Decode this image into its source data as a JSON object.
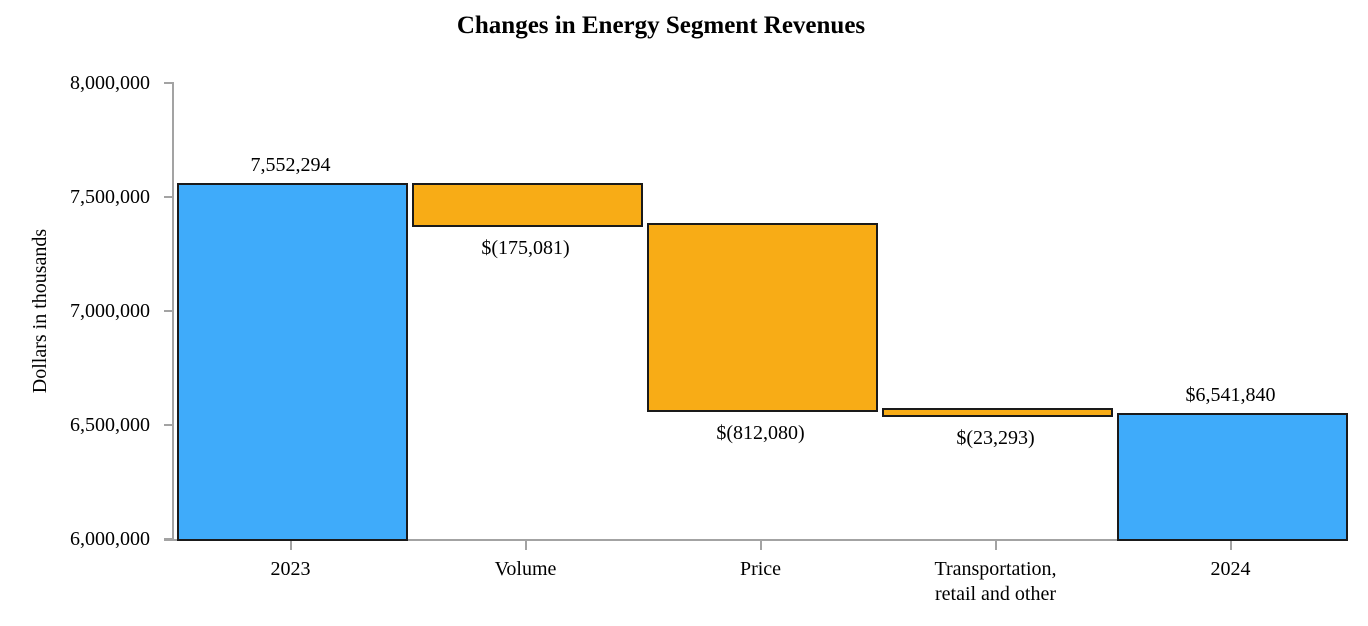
{
  "chart_data": {
    "type": "waterfall",
    "title": "Changes in Energy Segment Revenues",
    "ylabel": "Dollars in thousands",
    "xlabel": "",
    "ylim": [
      6000000,
      8000000
    ],
    "grid": false,
    "legend": false,
    "yticks": [
      {
        "value": 8000000,
        "label": "8,000,000"
      },
      {
        "value": 7500000,
        "label": "7,500,000"
      },
      {
        "value": 7000000,
        "label": "7,000,000"
      },
      {
        "value": 6500000,
        "label": "6,500,000"
      },
      {
        "value": 6000000,
        "label": "6,000,000"
      }
    ],
    "bars": [
      {
        "category_lines": [
          "2023"
        ],
        "role": "total",
        "start": 6000000,
        "end": 7552294,
        "label": "7,552,294",
        "label_position": "above"
      },
      {
        "category_lines": [
          "Volume"
        ],
        "role": "decrease",
        "start": 7377213,
        "end": 7552294,
        "label": "$(175,081)",
        "label_position": "below"
      },
      {
        "category_lines": [
          "Price"
        ],
        "role": "decrease",
        "start": 6565133,
        "end": 7377213,
        "label": "$(812,080)",
        "label_position": "below"
      },
      {
        "category_lines": [
          "Transportation,",
          "retail and other"
        ],
        "role": "decrease",
        "start": 6541840,
        "end": 6565133,
        "label": "$(23,293)",
        "label_position": "below"
      },
      {
        "category_lines": [
          "2024"
        ],
        "role": "total",
        "start": 6000000,
        "end": 6541840,
        "label": "$6,541,840",
        "label_position": "above"
      }
    ],
    "colors": {
      "total": "#3FABFA",
      "decrease": "#F8AC16",
      "bar_border": "#1A1A1A",
      "axis": "#A3A3A3",
      "text": "#000000"
    }
  }
}
